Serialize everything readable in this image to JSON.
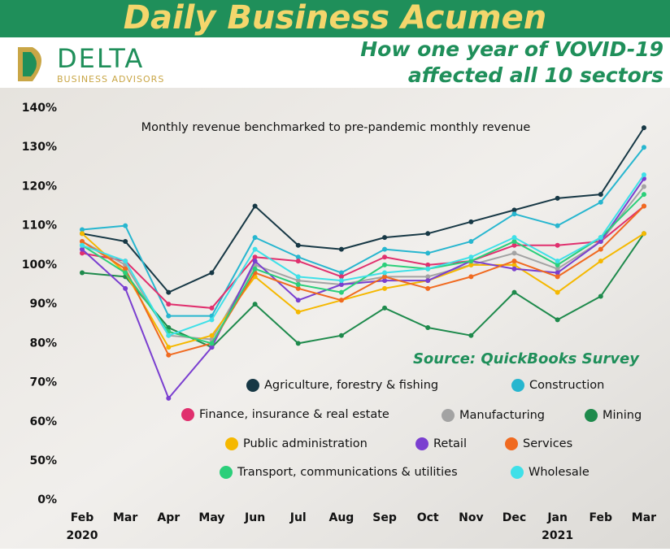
{
  "header": {
    "title": "Daily Business Acumen",
    "logo": "DELTA",
    "logo_subtitle": "BUSINESS ADVISORS",
    "headline": [
      "How one year of VOVID-19",
      "affected all 10 sectors"
    ]
  },
  "chart_data": {
    "type": "line",
    "subtitle": "Monthly revenue benchmarked to pre-pandemic monthly revenue",
    "source": "Source: QuickBooks Survey",
    "categories": [
      "Feb",
      "Mar",
      "Apr",
      "May",
      "Jun",
      "Jul",
      "Aug",
      "Sep",
      "Oct",
      "Nov",
      "Dec",
      "Jan",
      "Feb",
      "Mar"
    ],
    "x_sublabels": [
      "2020",
      null,
      null,
      null,
      null,
      null,
      null,
      null,
      null,
      null,
      null,
      "2021",
      null,
      null
    ],
    "ylim": [
      0,
      140
    ],
    "y_axis_break": [
      0,
      50
    ],
    "yticks": [
      {
        "value": 0,
        "label": "0%"
      },
      {
        "value": 50,
        "label": "50%"
      },
      {
        "value": 60,
        "label": "60%"
      },
      {
        "value": 70,
        "label": "70%"
      },
      {
        "value": 80,
        "label": "80%"
      },
      {
        "value": 90,
        "label": "90%"
      },
      {
        "value": 100,
        "label": "100%"
      },
      {
        "value": 110,
        "label": "110%"
      },
      {
        "value": 120,
        "label": "120%"
      },
      {
        "value": 130,
        "label": "130%"
      },
      {
        "value": 140,
        "label": "140%"
      }
    ],
    "series": [
      {
        "name": "Agriculture, forestry & fishing",
        "color": "#173845",
        "values": [
          108,
          106,
          93,
          98,
          115,
          105,
          104,
          107,
          108,
          111,
          114,
          117,
          118,
          135
        ]
      },
      {
        "name": "Construction",
        "color": "#27b6cf",
        "values": [
          109,
          110,
          87,
          87,
          107,
          102,
          98,
          104,
          103,
          106,
          113,
          110,
          116,
          130
        ]
      },
      {
        "name": "Finance, insurance & real estate",
        "color": "#e0306e",
        "values": [
          103,
          101,
          90,
          89,
          102,
          101,
          97,
          102,
          100,
          101,
          105,
          105,
          106,
          115
        ]
      },
      {
        "name": "Manufacturing",
        "color": "#a3a3a3",
        "values": [
          106,
          100,
          82,
          81,
          100,
          96,
          95,
          97,
          97,
          100,
          103,
          99,
          106,
          120
        ]
      },
      {
        "name": "Mining",
        "color": "#1e8a4c",
        "values": [
          98,
          97,
          84,
          79,
          90,
          80,
          82,
          89,
          84,
          82,
          93,
          86,
          92,
          108
        ]
      },
      {
        "name": "Public administration",
        "color": "#f5b800",
        "values": [
          108,
          98,
          79,
          82,
          97,
          88,
          91,
          94,
          96,
          100,
          100,
          93,
          101,
          108
        ]
      },
      {
        "name": "Retail",
        "color": "#7a3fd0",
        "values": [
          104,
          94,
          66,
          79,
          101,
          91,
          95,
          96,
          96,
          101,
          99,
          98,
          106,
          122
        ]
      },
      {
        "name": "Services",
        "color": "#f06a20",
        "values": [
          106,
          99,
          77,
          80,
          98,
          94,
          91,
          97,
          94,
          97,
          101,
          97,
          104,
          115
        ]
      },
      {
        "name": "Transport, communications & utilities",
        "color": "#2bcf7a",
        "values": [
          105,
          98,
          83,
          80,
          99,
          95,
          93,
          100,
          99,
          101,
          106,
          100,
          107,
          118
        ]
      },
      {
        "name": "Wholesale",
        "color": "#3fe0e8",
        "values": [
          105,
          101,
          82,
          86,
          104,
          97,
          96,
          98,
          99,
          102,
          107,
          101,
          107,
          123
        ]
      }
    ]
  }
}
